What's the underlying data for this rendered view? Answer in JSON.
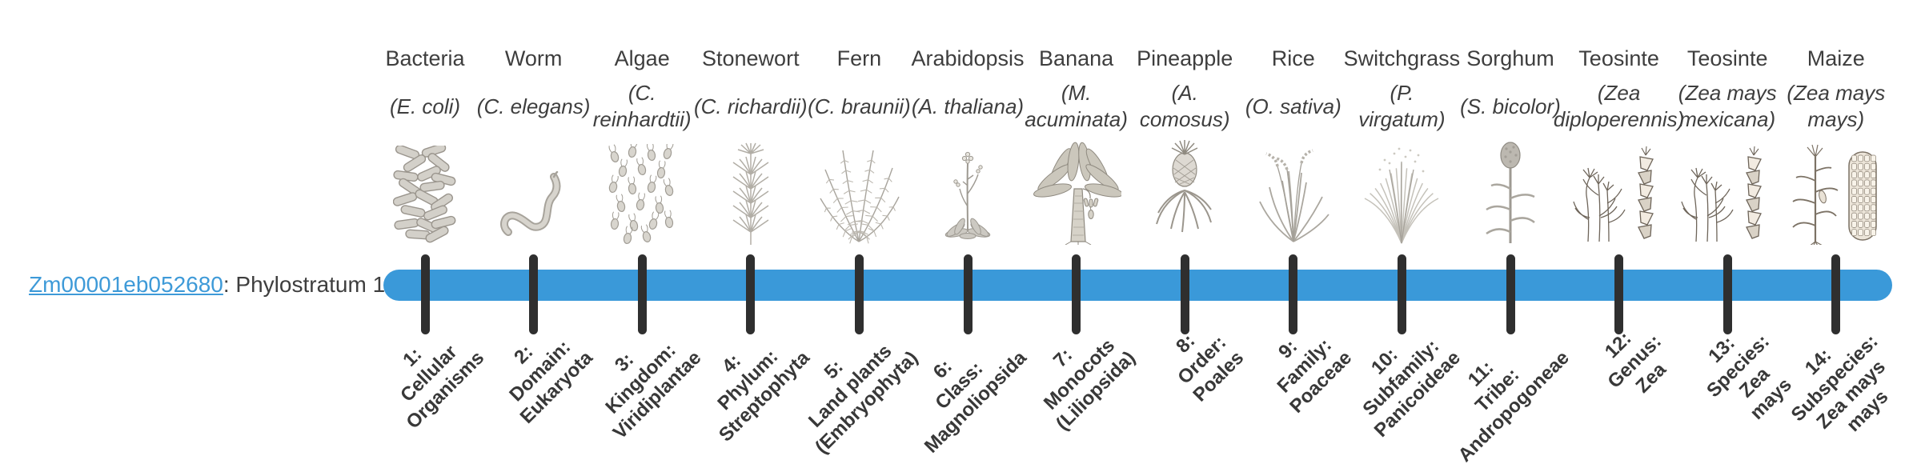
{
  "gene": {
    "id": "Zm00001eb052680",
    "stratum_suffix": ": Phylostratum 1"
  },
  "timeline": {
    "bar_color": "#3A99D9",
    "tick_color": "#2F2F2F",
    "link_color": "#3E9AD8",
    "text_color": "#3E3E3E",
    "phylostratum": 1,
    "num_strata": 14
  },
  "chart_data": {
    "type": "table",
    "title": "Zm00001eb052680: Phylostratum 1",
    "categories": [
      "Bacteria",
      "Worm",
      "Algae",
      "Stonewort",
      "Fern",
      "Arabidopsis",
      "Banana",
      "Pineapple",
      "Rice",
      "Switchgrass",
      "Sorghum",
      "Teosinte",
      "Teosinte",
      "Maize"
    ],
    "values": [
      1,
      2,
      3,
      4,
      5,
      6,
      7,
      8,
      9,
      10,
      11,
      12,
      13,
      14
    ]
  },
  "strata": [
    {
      "rank": 1,
      "common_name": "Bacteria",
      "scientific_name_lines": [
        "(E. coli)"
      ],
      "illustration": "bacteria",
      "stage_label_lines": [
        "1:",
        "Cellular",
        "Organisms"
      ]
    },
    {
      "rank": 2,
      "common_name": "Worm",
      "scientific_name_lines": [
        "(C. elegans)"
      ],
      "illustration": "worm",
      "stage_label_lines": [
        "2:",
        "Domain:",
        "Eukaryota"
      ]
    },
    {
      "rank": 3,
      "common_name": "Algae",
      "scientific_name_lines": [
        "(C.",
        "reinhardtii)"
      ],
      "illustration": "algae",
      "stage_label_lines": [
        "3:",
        "Kingdom:",
        "Viridiplantae"
      ]
    },
    {
      "rank": 4,
      "common_name": "Stonewort",
      "scientific_name_lines": [
        "(C. richardii)"
      ],
      "illustration": "stonewort",
      "stage_label_lines": [
        "4:",
        "Phylum:",
        "Streptophyta"
      ]
    },
    {
      "rank": 5,
      "common_name": "Fern",
      "scientific_name_lines": [
        "(C. braunii)"
      ],
      "illustration": "fern",
      "stage_label_lines": [
        "5:",
        "Land plants",
        "(Embryophyta)"
      ]
    },
    {
      "rank": 6,
      "common_name": "Arabidopsis",
      "scientific_name_lines": [
        "(A. thaliana)"
      ],
      "illustration": "arabidopsis",
      "stage_label_lines": [
        "6:",
        "Class:",
        "Magnoliopsida"
      ]
    },
    {
      "rank": 7,
      "common_name": "Banana",
      "scientific_name_lines": [
        "(M.",
        "acuminata)"
      ],
      "illustration": "banana",
      "stage_label_lines": [
        "7:",
        "Monocots",
        "(Liliopsida)"
      ]
    },
    {
      "rank": 8,
      "common_name": "Pineapple",
      "scientific_name_lines": [
        "(A.",
        "comosus)"
      ],
      "illustration": "pineapple",
      "stage_label_lines": [
        "8:",
        "Order:",
        "Poales"
      ]
    },
    {
      "rank": 9,
      "common_name": "Rice",
      "scientific_name_lines": [
        "(O. sativa)"
      ],
      "illustration": "rice",
      "stage_label_lines": [
        "9:",
        "Family:",
        "Poaceae"
      ]
    },
    {
      "rank": 10,
      "common_name": "Switchgrass",
      "scientific_name_lines": [
        "(P.",
        "virgatum)"
      ],
      "illustration": "switchgrass",
      "stage_label_lines": [
        "10:",
        "Subfamily:",
        "Panicoideae"
      ]
    },
    {
      "rank": 11,
      "common_name": "Sorghum",
      "scientific_name_lines": [
        "(S. bicolor)"
      ],
      "illustration": "sorghum",
      "stage_label_lines": [
        "11:",
        "Tribe:",
        "Andropogoneae"
      ]
    },
    {
      "rank": 12,
      "common_name": "Teosinte",
      "scientific_name_lines": [
        "(Zea",
        "diploperennis)"
      ],
      "illustration": "teosinte-diploperennis",
      "stage_label_lines": [
        "12:",
        "Genus:",
        "Zea"
      ]
    },
    {
      "rank": 13,
      "common_name": "Teosinte",
      "scientific_name_lines": [
        "(Zea mays",
        "mexicana)"
      ],
      "illustration": "teosinte-mexicana",
      "stage_label_lines": [
        "13:",
        "Species:",
        "Zea",
        "mays"
      ]
    },
    {
      "rank": 14,
      "common_name": "Maize",
      "scientific_name_lines": [
        "(Zea mays",
        "mays)"
      ],
      "illustration": "maize",
      "stage_label_lines": [
        "14:",
        "Subspecies:",
        "Zea mays",
        "mays"
      ]
    }
  ]
}
